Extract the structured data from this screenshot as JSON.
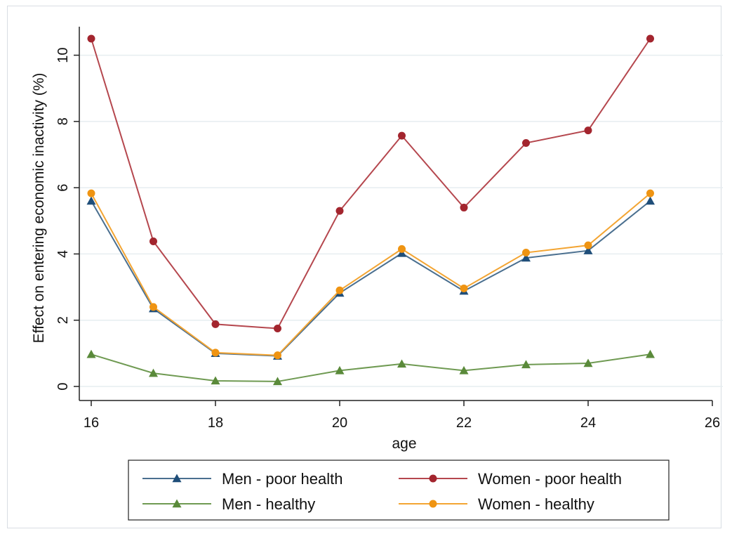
{
  "chart_data": {
    "type": "line",
    "title": "",
    "xlabel": "age",
    "ylabel": "Effect on entering economic inactivity (%)",
    "xlim": [
      16,
      26
    ],
    "ylim": [
      0,
      10.5
    ],
    "x_ticks": [
      "16",
      "18",
      "20",
      "22",
      "24",
      "26"
    ],
    "y_ticks": [
      "0",
      "2",
      "4",
      "6",
      "8",
      "10"
    ],
    "grid": "horizontal",
    "legend_position": "bottom",
    "x": [
      16,
      17,
      18,
      19,
      20,
      21,
      22,
      23,
      24,
      25
    ],
    "series": [
      {
        "name": "Men - poor health",
        "color": "#1f4e79",
        "line_color": "#4a6f8f",
        "marker": "triangle",
        "values": [
          5.6,
          2.35,
          1.0,
          0.92,
          2.82,
          4.02,
          2.88,
          3.88,
          4.1,
          5.6
        ]
      },
      {
        "name": "Women - poor health",
        "color": "#a3252e",
        "line_color": "#b5474e",
        "marker": "circle",
        "values": [
          10.5,
          4.38,
          1.88,
          1.75,
          5.3,
          7.57,
          5.4,
          7.35,
          7.73,
          10.5
        ]
      },
      {
        "name": "Men - healthy",
        "color": "#5a8a3a",
        "line_color": "#6f9a52",
        "marker": "triangle",
        "values": [
          0.97,
          0.4,
          0.17,
          0.15,
          0.48,
          0.68,
          0.48,
          0.66,
          0.7,
          0.97
        ]
      },
      {
        "name": "Women - healthy",
        "color": "#ef9412",
        "line_color": "#f3a533",
        "marker": "circle",
        "values": [
          5.83,
          2.4,
          1.02,
          0.94,
          2.9,
          4.15,
          2.96,
          4.04,
          4.26,
          5.83
        ]
      }
    ]
  }
}
